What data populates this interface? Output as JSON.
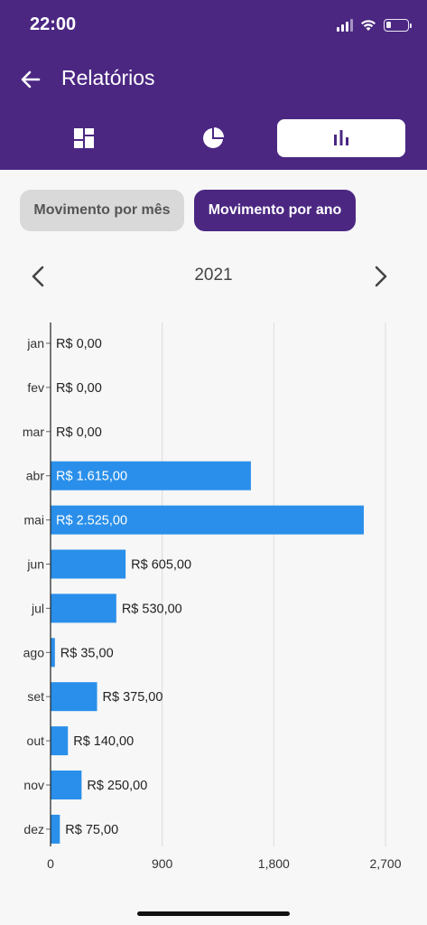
{
  "status_bar": {
    "time": "22:00"
  },
  "header": {
    "title": "Relatórios"
  },
  "tabs": [
    {
      "icon": "dashboard-icon",
      "active": false
    },
    {
      "icon": "pie-chart-icon",
      "active": false
    },
    {
      "icon": "bar-chart-icon",
      "active": true
    }
  ],
  "segmented": {
    "month_label": "Movimento por mês",
    "year_label": "Movimento por ano",
    "selected": "year"
  },
  "year_nav": {
    "year": "2021"
  },
  "colors": {
    "brand": "#4b2782",
    "bar": "#2a8fea"
  },
  "chart_data": {
    "type": "bar",
    "orientation": "horizontal",
    "categories": [
      "jan",
      "fev",
      "mar",
      "abr",
      "mai",
      "jun",
      "jul",
      "ago",
      "set",
      "out",
      "nov",
      "dez"
    ],
    "values": [
      0,
      0,
      0,
      1615,
      2525,
      605,
      530,
      35,
      375,
      140,
      250,
      75
    ],
    "data_labels": [
      "R$ 0,00",
      "R$ 0,00",
      "R$ 0,00",
      "R$ 1.615,00",
      "R$ 2.525,00",
      "R$ 605,00",
      "R$ 530,00",
      "R$ 35,00",
      "R$ 375,00",
      "R$ 140,00",
      "R$ 250,00",
      "R$ 75,00"
    ],
    "xlim": [
      0,
      2700
    ],
    "xticks": [
      0,
      900,
      1800,
      2700
    ],
    "xtick_labels": [
      "0",
      "900",
      "1,800",
      "2,700"
    ],
    "grid": true
  }
}
